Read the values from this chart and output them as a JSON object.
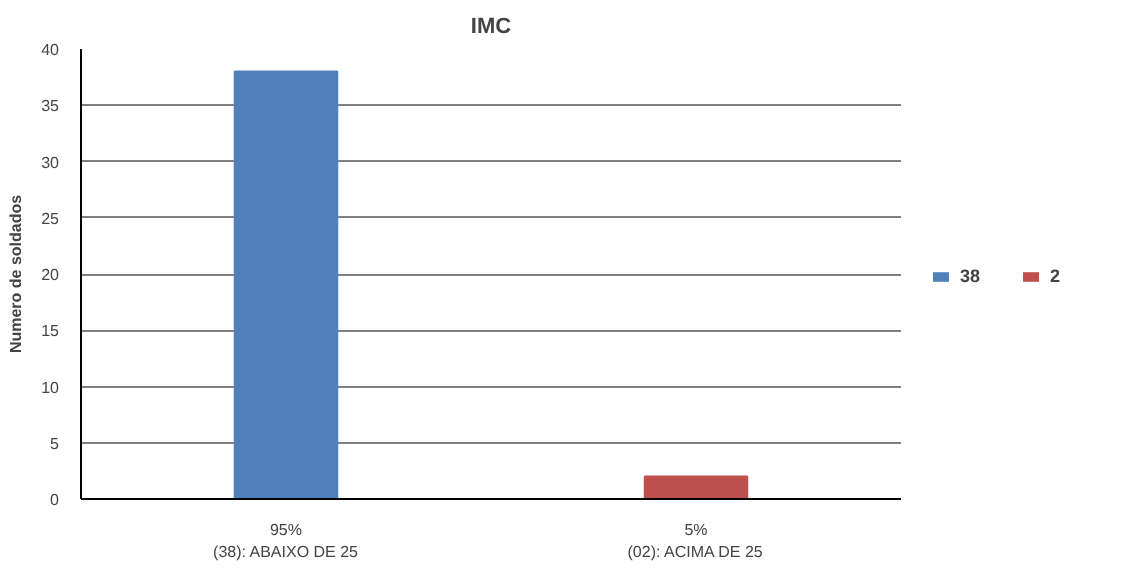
{
  "chart_data": {
    "type": "bar",
    "title": "IMC",
    "ylabel": "Numero de soldados",
    "categories": [
      "95%\n(38): ABAIXO DE 25",
      "5%\n(02): ACIMA DE 25"
    ],
    "series": [
      {
        "name": "38",
        "color": "#4f81bd",
        "values": [
          38,
          null
        ]
      },
      {
        "name": "2",
        "color": "#c0504d",
        "values": [
          null,
          2
        ]
      }
    ],
    "ylim": [
      0,
      40
    ],
    "yticks": [
      0,
      5,
      10,
      15,
      20,
      25,
      30,
      35,
      40
    ],
    "grid": "y",
    "legend": "right"
  }
}
